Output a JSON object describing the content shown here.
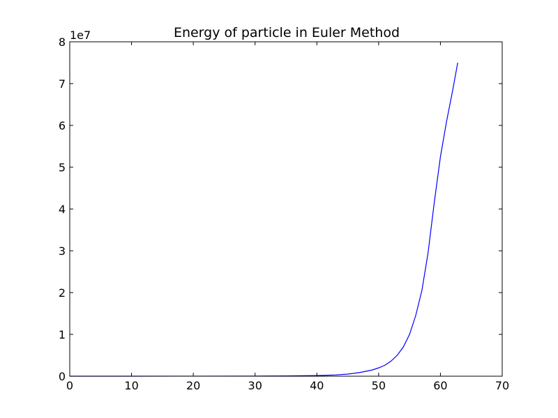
{
  "chart_data": {
    "type": "line",
    "title": "Energy of particle in Euler Method",
    "xlabel": "",
    "ylabel": "",
    "y_offset_label": "1e7",
    "xlim": [
      0,
      70
    ],
    "ylim": [
      0,
      8
    ],
    "x_ticks": [
      "0",
      "10",
      "20",
      "30",
      "40",
      "50",
      "60",
      "70"
    ],
    "y_ticks": [
      "0",
      "1",
      "2",
      "3",
      "4",
      "5",
      "6",
      "7",
      "8"
    ],
    "grid": false,
    "legend": "none",
    "line_color": "#0000ff",
    "series": [
      {
        "x": [
          0,
          10,
          20,
          30,
          35,
          40,
          43,
          45,
          47,
          49,
          50,
          51,
          52,
          53,
          54,
          55,
          56,
          57,
          58,
          59,
          60,
          61,
          62,
          62.8
        ],
        "values": [
          0,
          0.0003,
          0.001,
          0.003,
          0.006,
          0.015,
          0.03,
          0.05,
          0.09,
          0.15,
          0.2,
          0.26,
          0.36,
          0.5,
          0.7,
          1.0,
          1.45,
          2.05,
          2.95,
          4.15,
          5.25,
          6.1,
          6.85,
          7.5
        ]
      }
    ]
  }
}
